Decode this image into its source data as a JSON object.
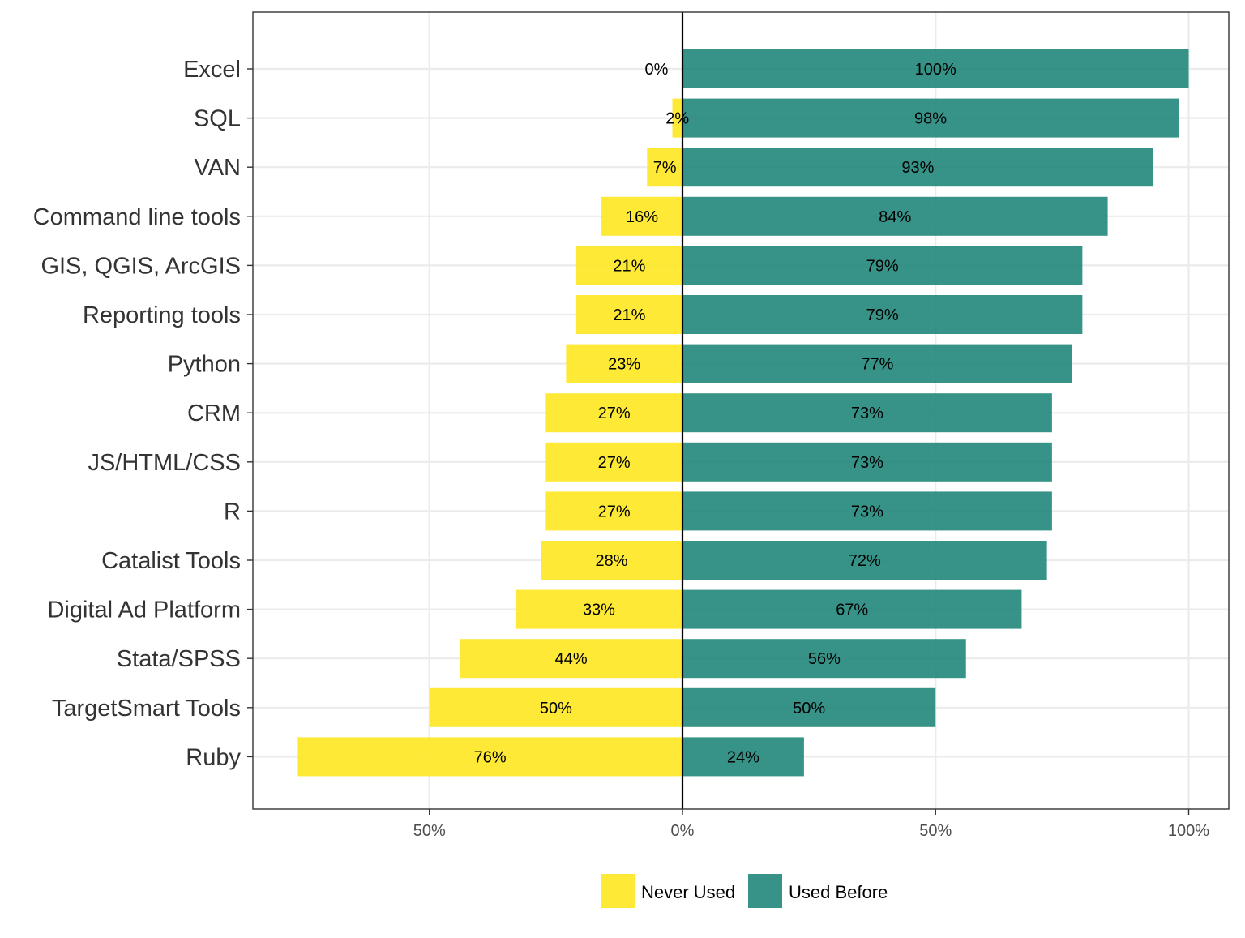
{
  "chart_data": {
    "type": "bar",
    "orientation": "horizontal",
    "stacking": "diverging",
    "categories": [
      "Excel",
      "SQL",
      "VAN",
      "Command line tools",
      "GIS, QGIS, ArcGIS",
      "Reporting tools",
      "Python",
      "CRM",
      "JS/HTML/CSS",
      "R",
      "Catalist Tools",
      "Digital Ad Platform",
      "Stata/SPSS",
      "TargetSmart Tools",
      "Ruby"
    ],
    "series": [
      {
        "name": "Never Used",
        "direction": "negative",
        "color": "#FDE725",
        "values": [
          0,
          2,
          7,
          16,
          21,
          21,
          23,
          27,
          27,
          27,
          28,
          33,
          44,
          50,
          76
        ],
        "labels": [
          "0%",
          "2%",
          "7%",
          "16%",
          "21%",
          "21%",
          "23%",
          "27%",
          "27%",
          "27%",
          "28%",
          "33%",
          "44%",
          "50%",
          "76%"
        ]
      },
      {
        "name": "Used Before",
        "direction": "positive",
        "color": "#21867A",
        "values": [
          100,
          98,
          93,
          84,
          79,
          79,
          77,
          73,
          73,
          73,
          72,
          67,
          56,
          50,
          24
        ],
        "labels": [
          "100%",
          "98%",
          "93%",
          "84%",
          "79%",
          "79%",
          "77%",
          "73%",
          "73%",
          "73%",
          "72%",
          "67%",
          "56%",
          "50%",
          "24%"
        ]
      }
    ],
    "x_ticks": [
      {
        "value": -50,
        "label": "50%"
      },
      {
        "value": 0,
        "label": "0%"
      },
      {
        "value": 50,
        "label": "50%"
      },
      {
        "value": 100,
        "label": "100%"
      }
    ],
    "xlim": [
      -85,
      108
    ],
    "xlabel": "",
    "ylabel": "",
    "title": "",
    "grid": true,
    "legend_position": "bottom"
  }
}
